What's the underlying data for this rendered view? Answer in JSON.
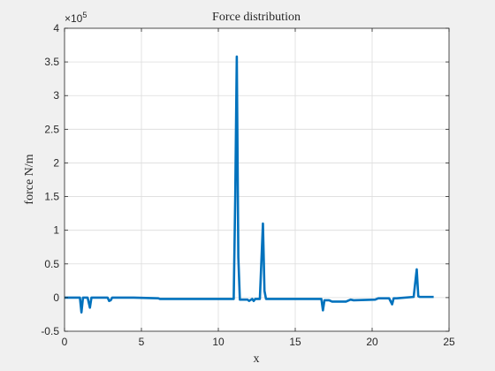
{
  "chart_data": {
    "type": "line",
    "title": "Force distribution",
    "xlabel": "x",
    "ylabel": "force N/m",
    "xlim": [
      0,
      25
    ],
    "ylim": [
      -0.5,
      4
    ],
    "y_multiplier_label": "×10",
    "y_multiplier_exponent": "5",
    "xticks": [
      "0",
      "5",
      "10",
      "15",
      "20",
      "25"
    ],
    "yticks": [
      "-0.5",
      "0",
      "0.5",
      "1",
      "1.5",
      "2",
      "2.5",
      "3",
      "3.5",
      "4"
    ],
    "grid": true,
    "line_color": "#0072bd",
    "series": [
      {
        "x": [
          0,
          1.0,
          1.1,
          1.2,
          1.5,
          1.65,
          1.75,
          2.8,
          2.9,
          3.0,
          3.1,
          4.5,
          6.1,
          6.2,
          11.0,
          11.1,
          11.2,
          11.3,
          11.4,
          11.9,
          12.0,
          12.2,
          12.3,
          12.4,
          12.7,
          12.9,
          13.0,
          13.1,
          16.7,
          16.8,
          16.9,
          17.2,
          17.4,
          18.3,
          18.6,
          18.8,
          20.2,
          20.4,
          21.1,
          21.3,
          21.4,
          21.6,
          22.7,
          22.9,
          23.0,
          23.1,
          24.0
        ],
        "y": [
          0,
          0,
          -0.22,
          0,
          0,
          -0.15,
          0,
          0,
          -0.05,
          -0.04,
          0,
          0,
          -0.01,
          -0.02,
          -0.02,
          1.5,
          3.58,
          0.6,
          -0.03,
          -0.03,
          -0.05,
          -0.02,
          -0.05,
          -0.02,
          -0.02,
          1.1,
          0.1,
          -0.02,
          -0.02,
          -0.19,
          -0.04,
          -0.04,
          -0.06,
          -0.06,
          -0.03,
          -0.04,
          -0.03,
          -0.01,
          -0.01,
          -0.1,
          -0.01,
          -0.01,
          0.01,
          0.42,
          0.02,
          0.01,
          0.01
        ]
      }
    ]
  }
}
